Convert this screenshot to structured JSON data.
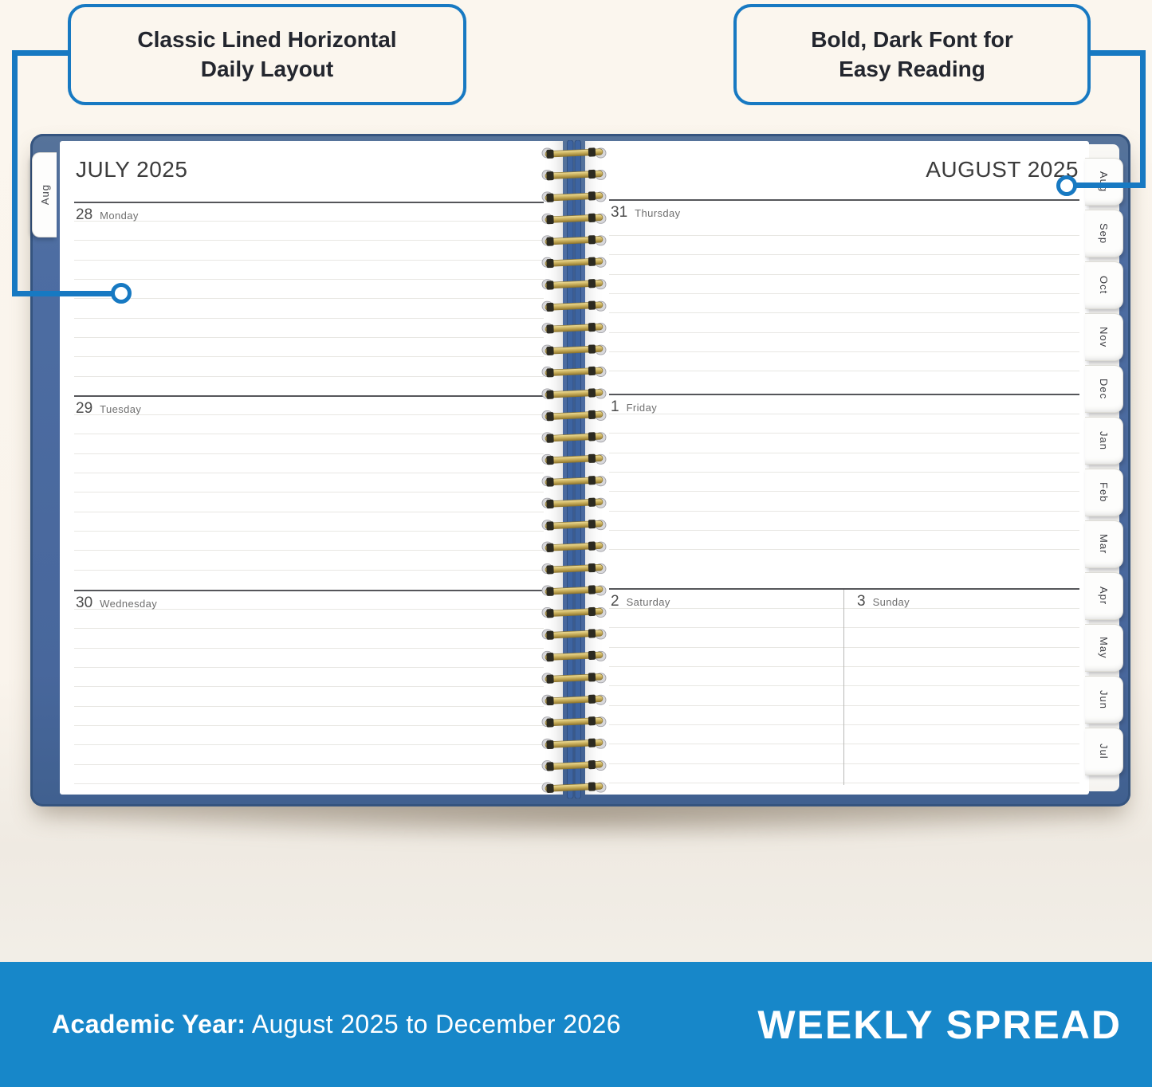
{
  "callouts": {
    "left": {
      "line1": "Classic Lined Horizontal",
      "line2": "Daily Layout"
    },
    "right": {
      "line1": "Bold, Dark Font for",
      "line2": "Easy Reading"
    }
  },
  "pages": {
    "left": {
      "header": "JULY 2025",
      "sections": [
        {
          "num": "28",
          "day": "Monday"
        },
        {
          "num": "29",
          "day": "Tuesday"
        },
        {
          "num": "30",
          "day": "Wednesday"
        }
      ]
    },
    "right": {
      "header": "AUGUST 2025",
      "sections": [
        {
          "num": "31",
          "day": "Thursday"
        },
        {
          "num": "1",
          "day": "Friday"
        },
        {
          "num": "2",
          "day": "Saturday",
          "second": {
            "num": "3",
            "day": "Sunday"
          }
        }
      ]
    }
  },
  "spine_tab_left": "Aug",
  "month_tabs": [
    "Aug",
    "Sep",
    "Oct",
    "Nov",
    "Dec",
    "Jan",
    "Feb",
    "Mar",
    "Apr",
    "May",
    "Jun",
    "Jul"
  ],
  "banner": {
    "label_bold": "Academic Year:",
    "label_rest": "August 2025 to December 2026",
    "title": "WEEKLY SPREAD"
  },
  "icons": [
    "spiral-binding-icon",
    "circle-marker-icon"
  ],
  "colors": {
    "accent_blue": "#1779c2",
    "banner_blue": "#1787c9",
    "cover_blue": "#4d6da2",
    "spiral_gold": "#c9ae5e",
    "paper": "#ffffff",
    "background_cream": "#faf4ec"
  }
}
